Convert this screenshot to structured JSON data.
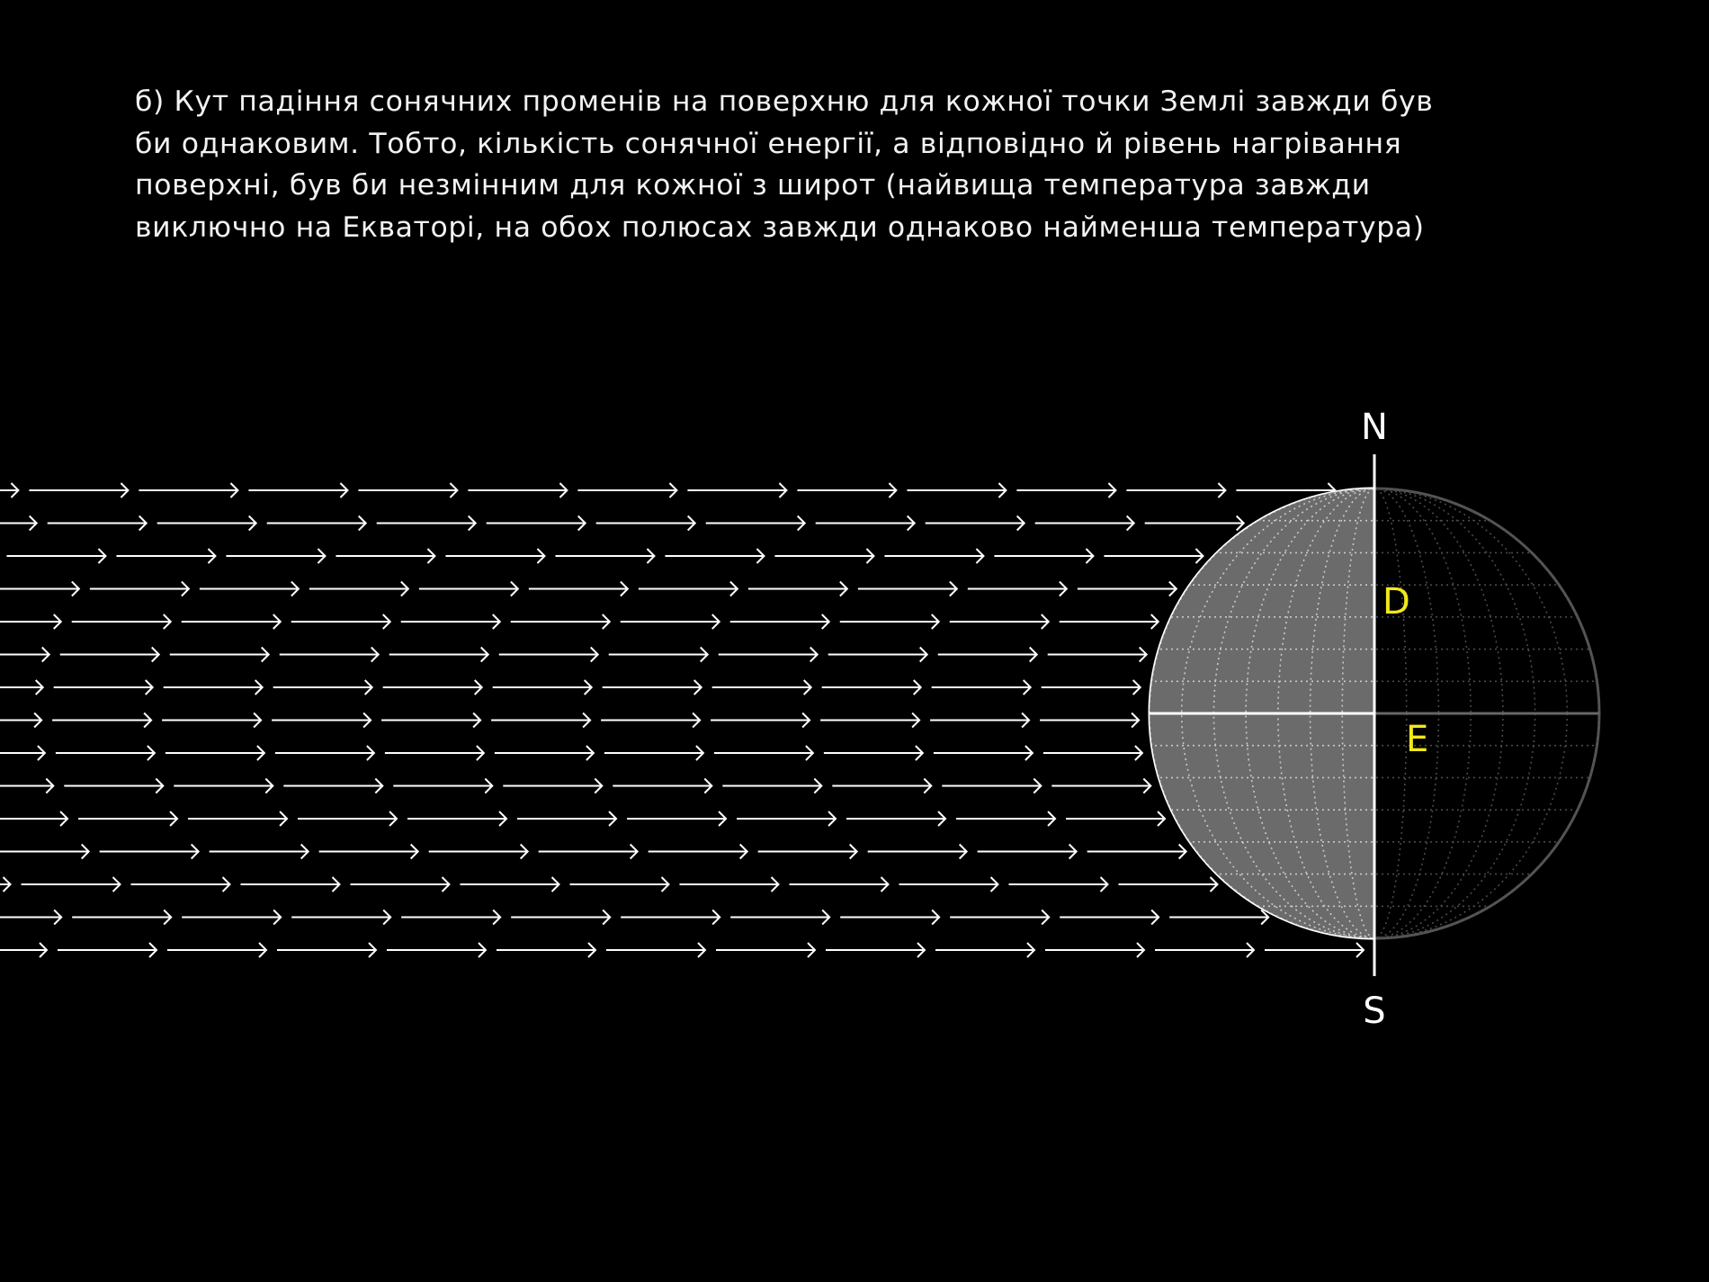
{
  "caption": {
    "lines": [
      "б) Кут падіння сонячних променів на поверхню для кожної точки Землі завжди був",
      "би однаковим. Тобто, кількість сонячної енергії, а відповідно й рівень нагрівання",
      "поверхні, був би незмінним для кожної з широт (найвища температура завжди",
      "виключно на Екваторі, на обох полюсах завжди однаково найменша температура)"
    ]
  },
  "globe": {
    "north_label": "N",
    "south_label": "S",
    "day_label": "D",
    "equator_label": "E"
  },
  "colors": {
    "background": "#000000",
    "day_side": "#6b6b6b",
    "night_side": "#000000",
    "rays": "#ffffff",
    "label_yellow": "#f2e71c",
    "text": "#f2f2f2"
  },
  "rays": {
    "rows": 15,
    "direction": "right"
  }
}
